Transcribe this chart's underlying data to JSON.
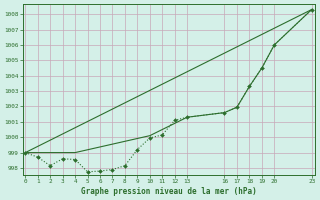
{
  "title": "Graphe pression niveau de la mer (hPa)",
  "bg_color": "#d4f0e8",
  "grid_color": "#c8a8b8",
  "line_color": "#2d6e2d",
  "fig_w": 3.2,
  "fig_h": 2.0,
  "dpi": 100,
  "xlim": [
    -0.2,
    23.3
  ],
  "ylim": [
    997.55,
    1008.65
  ],
  "yticks": [
    998,
    999,
    1000,
    1001,
    1002,
    1003,
    1004,
    1005,
    1006,
    1007,
    1008
  ],
  "xticks": [
    0,
    1,
    2,
    3,
    4,
    5,
    6,
    7,
    8,
    9,
    10,
    11,
    12,
    13,
    16,
    17,
    18,
    19,
    20,
    23
  ],
  "xtick_labels": [
    "0",
    "1",
    "2",
    "3",
    "4",
    "5",
    "6",
    "7",
    "8",
    "9",
    "10",
    "11",
    "12",
    "13",
    "16",
    "17",
    "18",
    "19",
    "20",
    "23"
  ],
  "line1_x": [
    0,
    1,
    2,
    3,
    4,
    5,
    6,
    7,
    8,
    9,
    10,
    11,
    12,
    13,
    16,
    17,
    18,
    19,
    20,
    23
  ],
  "line1_y": [
    999.0,
    998.7,
    998.15,
    998.6,
    998.55,
    997.75,
    997.8,
    997.9,
    998.15,
    999.2,
    999.95,
    1000.15,
    1001.1,
    1001.3,
    1001.6,
    1001.95,
    1003.3,
    1004.5,
    1006.0,
    1008.3
  ],
  "line2_x": [
    0,
    23
  ],
  "line2_y": [
    999.0,
    1008.3
  ],
  "line3_x": [
    0,
    4,
    10,
    13,
    16,
    17,
    18,
    19,
    20,
    23
  ],
  "line3_y": [
    999.0,
    999.0,
    1000.1,
    1001.3,
    1001.6,
    1001.95,
    1003.3,
    1004.5,
    1006.0,
    1008.3
  ]
}
